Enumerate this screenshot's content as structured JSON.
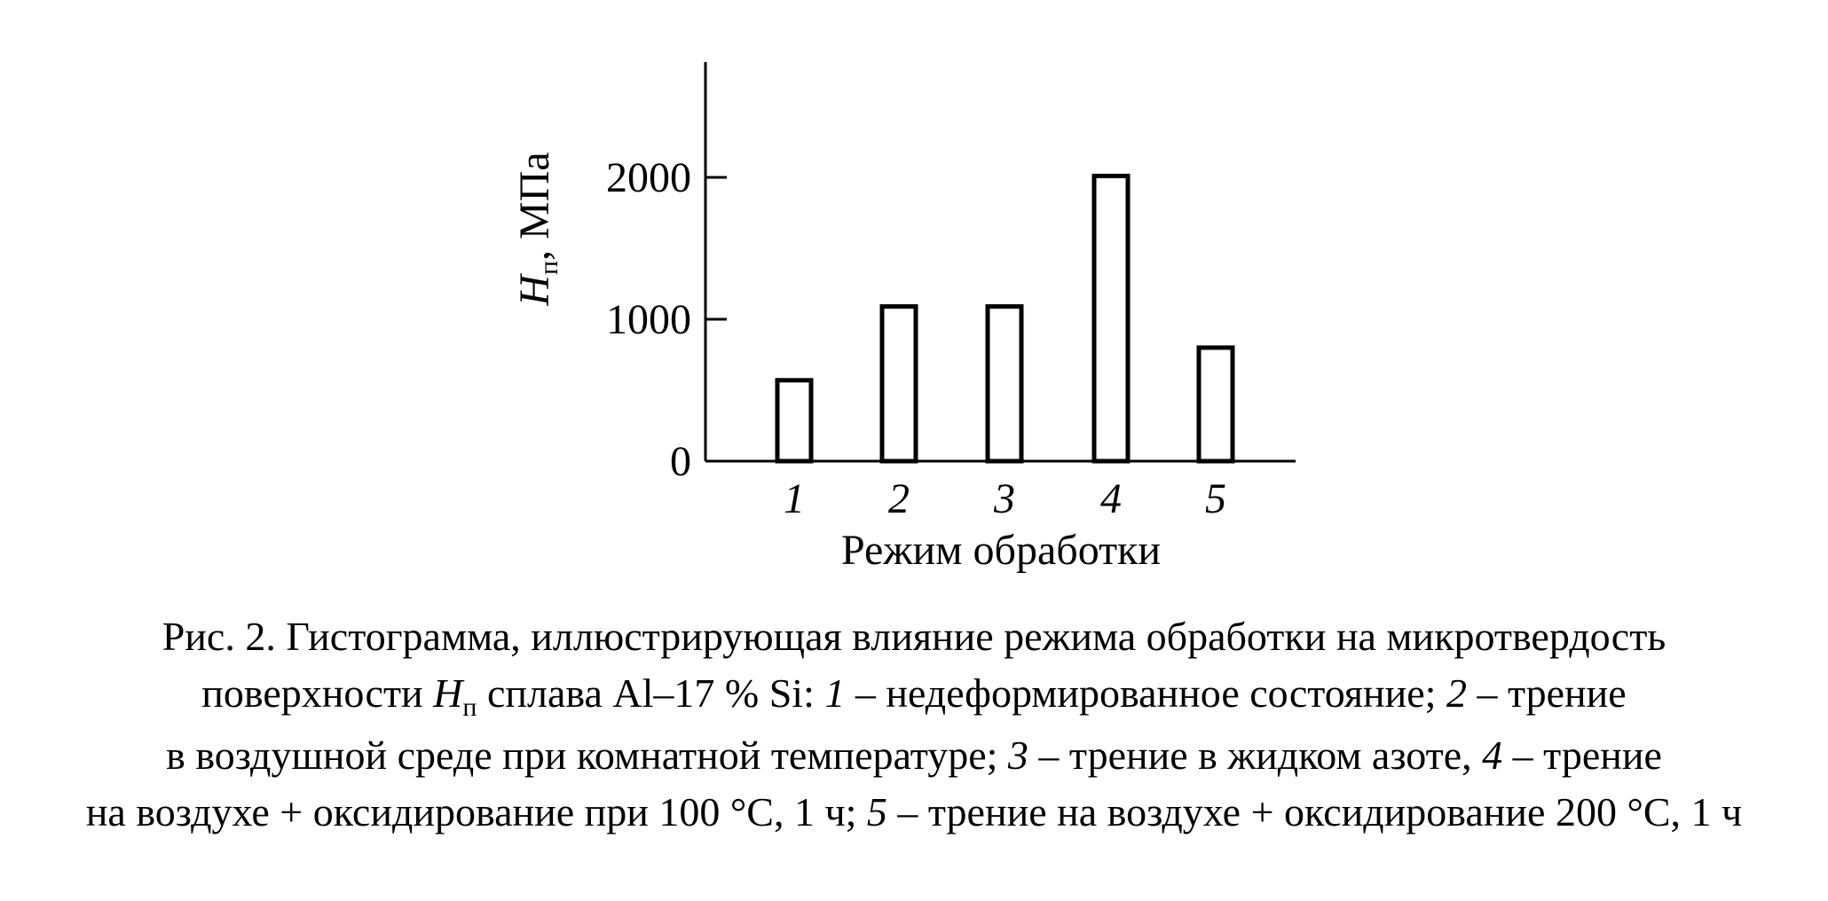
{
  "chart_data": {
    "type": "bar",
    "categories": [
      "1",
      "2",
      "3",
      "4",
      "5"
    ],
    "values": [
      570,
      1090,
      1090,
      2010,
      800
    ],
    "ylabel_main": "H",
    "ylabel_sub": "п",
    "ylabel_unit": ", МПа",
    "xlabel": "Режим обработки",
    "ylim": [
      0,
      2800
    ],
    "yticks": [
      {
        "value": 0,
        "label": "0"
      },
      {
        "value": 1000,
        "label": "1000"
      },
      {
        "value": 2000,
        "label": "2000"
      }
    ],
    "grid": false,
    "bar_fill": "#ffffff",
    "bar_stroke": "#000000"
  },
  "caption": {
    "line1": "Рис. 2. Гистограмма, иллюстрирующая влияние режима обработки на микротвердость",
    "line2_a": "поверхности",
    "line2_h": "H",
    "line2_sub": "п",
    "line2_b": "сплава Al–17 % Si:",
    "line2_n1": "1",
    "line2_c": "– недеформированное состояние;",
    "line2_n2": "2",
    "line2_d": "– трение",
    "line3_a": "в воздушной среде при комнатной температуре;",
    "line3_n3": "3",
    "line3_b": "– трение в жидком азоте,",
    "line3_n4": "4",
    "line3_c": "– трение",
    "line4_a": "на воздухе + оксидирование при 100 °С, 1 ч;",
    "line4_n5": "5",
    "line4_b": "– трение на воздухе + оксидирование 200 °С, 1 ч"
  }
}
